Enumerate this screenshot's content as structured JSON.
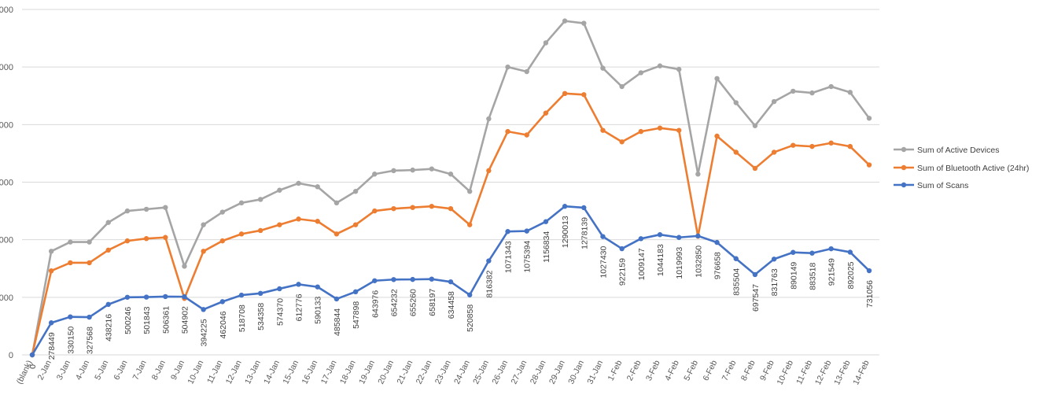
{
  "chart_data": {
    "type": "line",
    "categories": [
      "(blank)",
      "2-Jan",
      "3-Jan",
      "4-Jan",
      "5-Jan",
      "6-Jan",
      "7-Jan",
      "8-Jan",
      "9-Jan",
      "10-Jan",
      "11-Jan",
      "12-Jan",
      "13-Jan",
      "14-Jan",
      "15-Jan",
      "16-Jan",
      "17-Jan",
      "18-Jan",
      "19-Jan",
      "20-Jan",
      "21-Jan",
      "22-Jan",
      "23-Jan",
      "24-Jan",
      "25-Jan",
      "26-Jan",
      "27-Jan",
      "28-Jan",
      "29-Jan",
      "30-Jan",
      "31-Jan",
      "1-Feb",
      "2-Feb",
      "3-Feb",
      "4-Feb",
      "5-Feb",
      "6-Feb",
      "7-Feb",
      "8-Feb",
      "9-Feb",
      "10-Feb",
      "11-Feb",
      "12-Feb",
      "13-Feb",
      "14-Feb"
    ],
    "y_tick_labels": [
      "0",
      "000",
      "000",
      "000",
      "000",
      "000",
      "000"
    ],
    "ylim": [
      0,
      3000000
    ],
    "grid": true,
    "legend_position": "right",
    "series": [
      {
        "name": "Sum of Active Devices",
        "color": "#A5A5A5",
        "values": [
          0,
          900000,
          980000,
          980000,
          1150000,
          1250000,
          1265000,
          1280000,
          770000,
          1130000,
          1240000,
          1320000,
          1350000,
          1430000,
          1490000,
          1460000,
          1320000,
          1420000,
          1570000,
          1600000,
          1605000,
          1615000,
          1570000,
          1420000,
          2050000,
          2500000,
          2460000,
          2710000,
          2900000,
          2880000,
          2490000,
          2330000,
          2450000,
          2510000,
          2480000,
          1570000,
          2400000,
          2190000,
          1990000,
          2200000,
          2290000,
          2275000,
          2330000,
          2280000,
          2055000
        ]
      },
      {
        "name": "Sum of Bluetooth Active (24hr)",
        "color": "#ED7D31",
        "values": [
          0,
          730000,
          800000,
          800000,
          910000,
          990000,
          1010000,
          1020000,
          490000,
          900000,
          990000,
          1050000,
          1080000,
          1130000,
          1180000,
          1160000,
          1050000,
          1130000,
          1250000,
          1270000,
          1280000,
          1290000,
          1270000,
          1130000,
          1600000,
          1940000,
          1910000,
          2100000,
          2270000,
          2260000,
          1950000,
          1850000,
          1940000,
          1970000,
          1950000,
          1030000,
          1900000,
          1760000,
          1620000,
          1760000,
          1820000,
          1810000,
          1840000,
          1810000,
          1650000
        ]
      },
      {
        "name": "Sum of Scans",
        "color": "#4472C4",
        "values": [
          0,
          278449,
          330150,
          327568,
          438216,
          500246,
          501843,
          506361,
          504902,
          394225,
          462046,
          518708,
          534358,
          574370,
          612776,
          590133,
          485844,
          547898,
          643976,
          654232,
          655260,
          658197,
          634458,
          520858,
          816382,
          1071343,
          1075394,
          1156834,
          1290013,
          1278139,
          1027430,
          922159,
          1009147,
          1044183,
          1019993,
          1032850,
          976658,
          835504,
          697547,
          831763,
          890149,
          883518,
          921549,
          892025,
          731056
        ],
        "data_labels": [
          "0",
          "278449",
          "330150",
          "327568",
          "438216",
          "500246",
          "501843",
          "506361",
          "504902",
          "394225",
          "462046",
          "518708",
          "534358",
          "574370",
          "612776",
          "590133",
          "485844",
          "547898",
          "643976",
          "654232",
          "655260",
          "658197",
          "634458",
          "520858",
          "816382",
          "1071343",
          "1075394",
          "1156834",
          "1290013",
          "1278139",
          "1027430",
          "922159",
          "1009147",
          "1044183",
          "1019993",
          "1032850",
          "976658",
          "835504",
          "697547",
          "831763",
          "890149",
          "883518",
          "921549",
          "892025",
          "731056"
        ]
      }
    ]
  }
}
